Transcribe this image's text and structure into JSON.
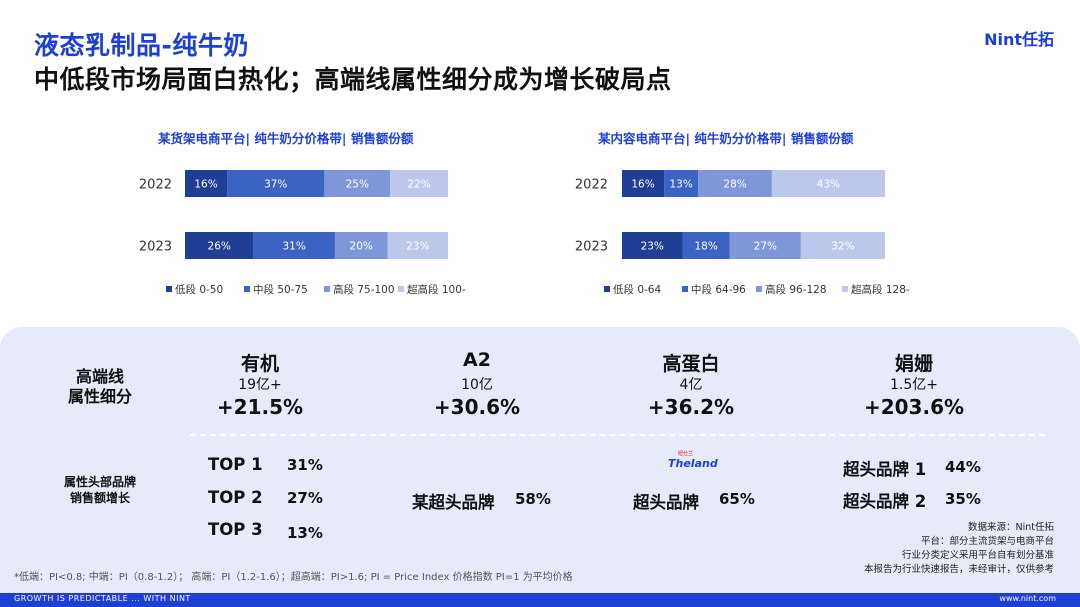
{
  "header": {
    "title": "液态乳制品-纯牛奶",
    "subtitle": "中低段市场局面白热化；高端线属性细分成为增长破局点",
    "brand": "Nint任拓"
  },
  "colors": {
    "accent": "#1d3fd6",
    "seg1": "#1f3f95",
    "seg2": "#3b63c4",
    "seg3": "#7f97d9",
    "seg4": "#bcc7ea"
  },
  "chart_data": [
    {
      "type": "bar",
      "orientation": "horizontal-stacked-100",
      "title": "某货架电商平台| 纯牛奶分价格带| 销售额份额",
      "categories": [
        "2022",
        "2023"
      ],
      "series": [
        {
          "name": "低段 0-50",
          "values": [
            16,
            26
          ]
        },
        {
          "name": "中段 50-75",
          "values": [
            37,
            31
          ]
        },
        {
          "name": "高段 75-100",
          "values": [
            25,
            20
          ]
        },
        {
          "name": "超高段 100-",
          "values": [
            22,
            23
          ]
        }
      ],
      "data_labels": [
        [
          "16%",
          "37%",
          "25%",
          "22%"
        ],
        [
          "26%",
          "31%",
          "20%",
          "23%"
        ]
      ],
      "legend": "bottom"
    },
    {
      "type": "bar",
      "orientation": "horizontal-stacked-100",
      "title": "某内容电商平台| 纯牛奶分价格带| 销售额份额",
      "categories": [
        "2022",
        "2023"
      ],
      "series": [
        {
          "name": "低段 0-64",
          "values": [
            16,
            23
          ]
        },
        {
          "name": "中段 64-96",
          "values": [
            13,
            18
          ]
        },
        {
          "name": "高段 96-128",
          "values": [
            28,
            27
          ]
        },
        {
          "name": "超高段 128-",
          "values": [
            43,
            32
          ]
        }
      ],
      "data_labels": [
        [
          "16%",
          "13%",
          "28%",
          "43%"
        ],
        [
          "23%",
          "18%",
          "27%",
          "32%"
        ]
      ],
      "legend": "bottom"
    }
  ],
  "panel": {
    "row1_label": [
      "高端线",
      "属性细分"
    ],
    "row2_label": [
      "属性头部品牌",
      "销售额增长"
    ],
    "categories": [
      {
        "name": "有机",
        "size": "19亿+",
        "growth": "+21.5%"
      },
      {
        "name": "A2",
        "size": "10亿",
        "growth": "+30.6%"
      },
      {
        "name": "高蛋白",
        "size": "4亿",
        "growth": "+36.2%"
      },
      {
        "name": "娟姗",
        "size": "1.5亿+",
        "growth": "+203.6%"
      }
    ],
    "organic_top": [
      {
        "label": "TOP 1",
        "value": "31%"
      },
      {
        "label": "TOP 2",
        "value": "27%"
      },
      {
        "label": "TOP 3",
        "value": "13%"
      }
    ],
    "a2_brand": {
      "label": "某超头品牌",
      "value": "58%"
    },
    "protein_brand": {
      "label": "超头品牌",
      "value": "65%",
      "logo_top": "纽仕兰",
      "logo_word": "Theland"
    },
    "jersey_brands": [
      {
        "label": "超头品牌 1",
        "value": "44%"
      },
      {
        "label": "超头品牌 2",
        "value": "35%"
      }
    ]
  },
  "source": [
    "数据来源：Nint任拓",
    "平台：部分主流货架与电商平台",
    "行业分类定义采用平台自有划分基准",
    "本报告为行业快速报告，未经审计，仅供参考"
  ],
  "footnote": "*低端：PI<0.8; 中端：PI（0.8-1.2）；  高端：PI（1.2-1.6）；超高端：PI>1.6;      PI = Price Index 价格指数 PI=1 为平均价格",
  "footer": {
    "left": "GROWTH IS PREDICTABLE ... WITH NINT",
    "right": "www.nint.com"
  }
}
